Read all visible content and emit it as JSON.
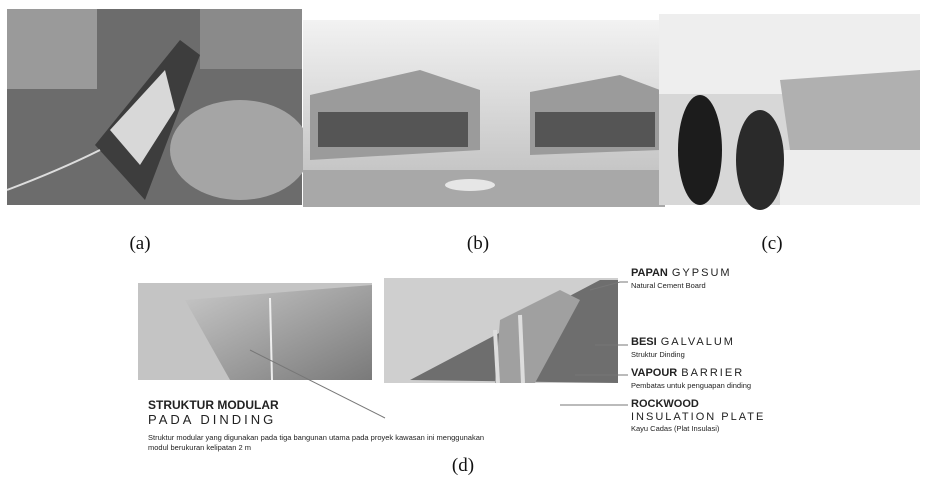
{
  "panels": [
    {
      "caption": "(a)"
    },
    {
      "caption": "(b)"
    },
    {
      "caption": "(c)"
    }
  ],
  "diagram": {
    "caption": "(d)",
    "title_bold": "STRUKTUR MODULAR",
    "title_light": "PADA DINDING",
    "description": [
      "Struktur modular yang digunakan pada tiga bangunan utama pada  proyek kawasan ini menggunakan",
      "modul berukuran kelipatan 2 m"
    ],
    "labels": [
      {
        "bold": "PAPAN",
        "light": "GYPSUM",
        "sub": "Natural Cement Board"
      },
      {
        "bold": "BESI",
        "light": "GALVALUM",
        "sub": "Struktur Dinding"
      },
      {
        "bold": "VAPOUR",
        "light": "BARRIER",
        "sub": "Pembatas untuk penguapan dinding"
      },
      {
        "bold": "ROCKWOOD",
        "light": "INSULATION PLATE",
        "sub": "Kayu Cadas (Plat Insulasi)"
      }
    ]
  }
}
